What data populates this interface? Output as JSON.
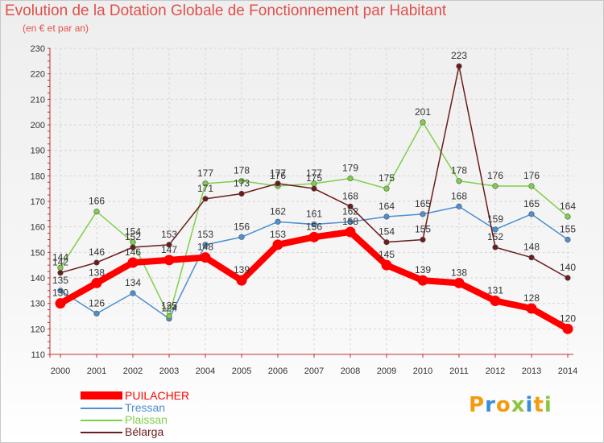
{
  "title": "Evolution de la Dotation Globale de Fonctionnement par Habitant",
  "subtitle": "(en € et par an)",
  "brand": {
    "text": "Proxiti",
    "colors": [
      "#f39c12",
      "#3a8ed8",
      "#f39c12",
      "#8cc63f",
      "#3a8ed8",
      "#f39c12",
      "#8cc63f"
    ]
  },
  "chart_data": {
    "type": "line",
    "x": [
      "2000",
      "2001",
      "2002",
      "2003",
      "2004",
      "2005",
      "2006",
      "2007",
      "2008",
      "2009",
      "2010",
      "2011",
      "2012",
      "2013",
      "2014"
    ],
    "ylim": [
      110,
      230
    ],
    "yticks": [
      110,
      120,
      130,
      140,
      150,
      160,
      170,
      180,
      190,
      200,
      210,
      220,
      230
    ],
    "grid": true,
    "legend_position": "bottom-left",
    "series": [
      {
        "name": "PUILACHER",
        "color": "#ff0000",
        "values": [
          130,
          138,
          146,
          147,
          148,
          139,
          153,
          156,
          158,
          145,
          139,
          138,
          131,
          128,
          120
        ]
      },
      {
        "name": "Tressan",
        "color": "#4d8fcf",
        "values": [
          135,
          126,
          134,
          124,
          153,
          156,
          162,
          161,
          162,
          164,
          165,
          168,
          159,
          165,
          155
        ]
      },
      {
        "name": "Plaissan",
        "color": "#7fcf4a",
        "values": [
          144,
          166,
          154,
          125,
          177,
          178,
          176,
          177,
          179,
          175,
          201,
          178,
          176,
          176,
          164
        ]
      },
      {
        "name": "Bélarga",
        "color": "#6b1c1c",
        "values": [
          142,
          146,
          152,
          153,
          171,
          173,
          177,
          175,
          168,
          154,
          155,
          223,
          152,
          148,
          140
        ]
      }
    ]
  }
}
